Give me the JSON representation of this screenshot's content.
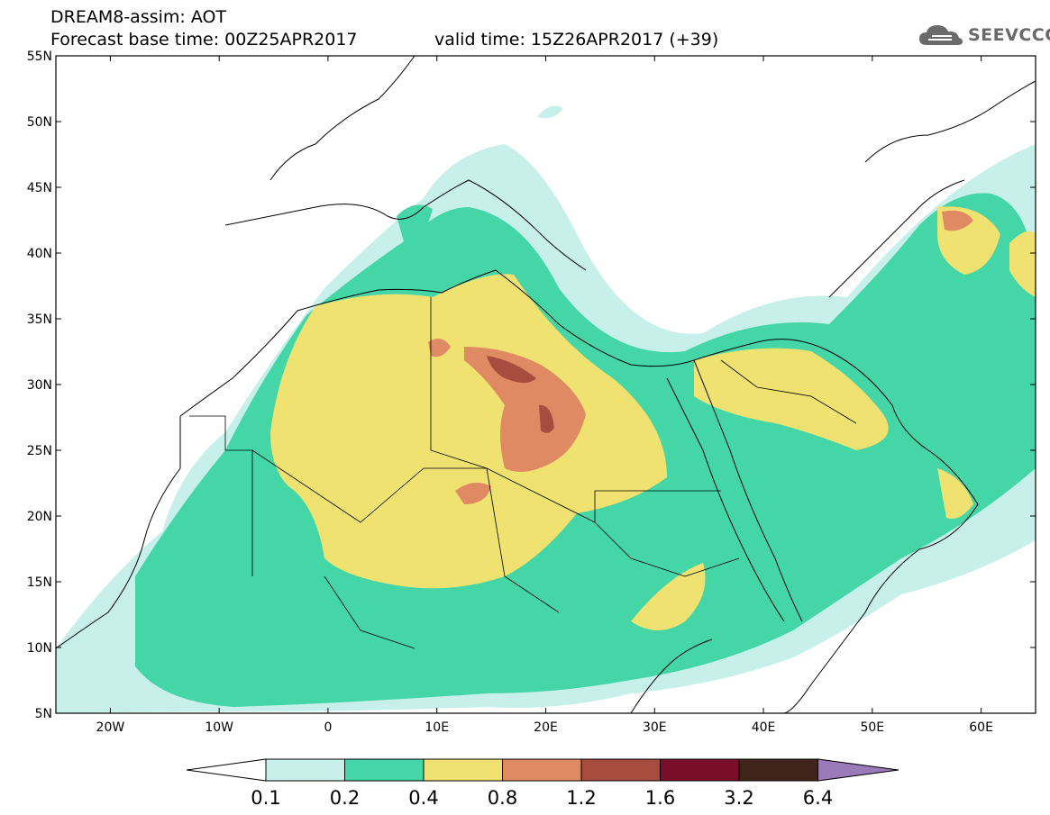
{
  "header": {
    "title": "DREAM8-assim: AOT",
    "base_time": "Forecast base time: 00Z25APR2017",
    "valid_time": "valid time: 15Z26APR2017 (+39)"
  },
  "logo": {
    "text": "SEEVCCC",
    "icon": "cloud-icon"
  },
  "map": {
    "lon_range": [
      -25,
      65
    ],
    "lat_range": [
      5,
      55
    ],
    "lat_labels": [
      {
        "value": 55,
        "text": "55N"
      },
      {
        "value": 50,
        "text": "50N"
      },
      {
        "value": 45,
        "text": "45N"
      },
      {
        "value": 40,
        "text": "40N"
      },
      {
        "value": 35,
        "text": "35N"
      },
      {
        "value": 30,
        "text": "30N"
      },
      {
        "value": 25,
        "text": "25N"
      },
      {
        "value": 20,
        "text": "20N"
      },
      {
        "value": 15,
        "text": "15N"
      },
      {
        "value": 10,
        "text": "10N"
      },
      {
        "value": 5,
        "text": "5N"
      }
    ],
    "lon_labels": [
      {
        "value": -20,
        "text": "20W"
      },
      {
        "value": -10,
        "text": "10W"
      },
      {
        "value": 0,
        "text": "0"
      },
      {
        "value": 10,
        "text": "10E"
      },
      {
        "value": 20,
        "text": "20E"
      },
      {
        "value": 30,
        "text": "30E"
      },
      {
        "value": 40,
        "text": "40E"
      },
      {
        "value": 50,
        "text": "50E"
      },
      {
        "value": 60,
        "text": "60E"
      }
    ]
  },
  "colorbar": {
    "labels": [
      "0.1",
      "0.2",
      "0.4",
      "0.8",
      "1.2",
      "1.6",
      "3.2",
      "6.4"
    ],
    "colors": [
      "#c8f0ea",
      "#44d6a6",
      "#f0e270",
      "#e08a64",
      "#a84c40",
      "#7a0e28",
      "#40261a",
      "#9a7ab8"
    ]
  }
}
